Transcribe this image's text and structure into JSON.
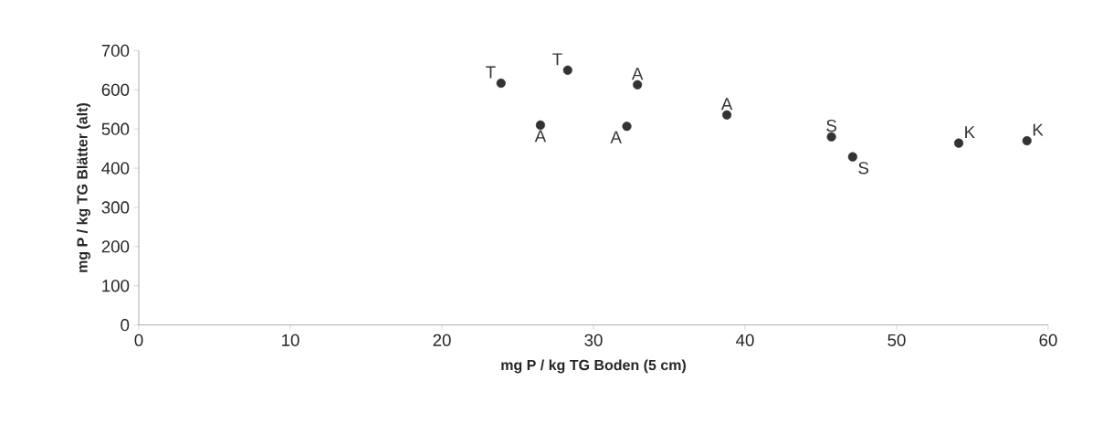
{
  "chart_data": {
    "type": "scatter",
    "xlabel": "mg P / kg TG Boden (5 cm)",
    "ylabel": "mg P / kg TG Blätter (alt)",
    "x": [
      23.9,
      26.5,
      28.3,
      32.2,
      32.9,
      38.8,
      45.7,
      47.1,
      54.1,
      58.6
    ],
    "values": [
      617,
      510,
      650,
      507,
      613,
      536,
      480,
      429,
      464,
      470
    ],
    "color": "#333333",
    "marker": "circle",
    "grid": false,
    "xlim": [
      0,
      60
    ],
    "xticks": [
      0,
      10,
      20,
      30,
      40,
      50,
      60
    ],
    "ylim": [
      0,
      700
    ],
    "yticks": [
      0,
      100,
      200,
      300,
      400,
      500,
      600,
      700
    ],
    "annotations": [
      {
        "text": "T",
        "x": 23.9,
        "y": 617
      },
      {
        "text": "A",
        "x": 26.5,
        "y": 510
      },
      {
        "text": "T",
        "x": 28.3,
        "y": 650
      },
      {
        "text": "A",
        "x": 32.2,
        "y": 507
      },
      {
        "text": "A",
        "x": 32.9,
        "y": 613
      },
      {
        "text": "A",
        "x": 38.8,
        "y": 536
      },
      {
        "text": "S",
        "x": 45.7,
        "y": 480
      },
      {
        "text": "S",
        "x": 47.1,
        "y": 429
      },
      {
        "text": "K",
        "x": 54.1,
        "y": 464
      },
      {
        "text": "K",
        "x": 58.6,
        "y": 470
      }
    ]
  }
}
